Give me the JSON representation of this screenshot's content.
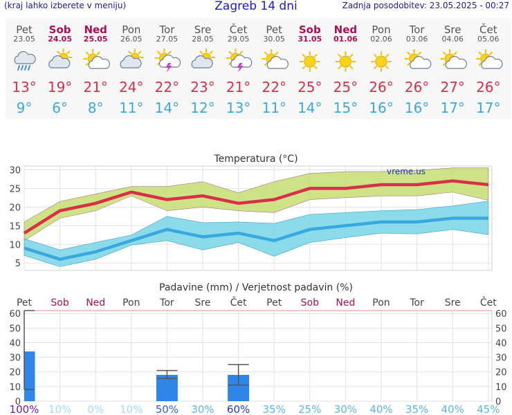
{
  "header": {
    "menu_hint": "(kraj lahko izberete v meniju)",
    "title": "Zagreb 14 dni",
    "updated": "Zadnja posodobitev: 23.05.2025 - 00:27"
  },
  "colors": {
    "weekday": "#555555",
    "weekend": "#aa1155",
    "max_temp": "#d83048",
    "min_temp": "#3aa8e0",
    "max_band": "#c8e07a",
    "min_band": "#7fd8e8",
    "bars": "#2e86e8"
  },
  "days": [
    {
      "day": "Pet",
      "date": "23.05",
      "weekend": false,
      "icon": "cloud-heavy-rain-icon",
      "max": "13°",
      "min": "9°"
    },
    {
      "day": "Sob",
      "date": "24.05",
      "weekend": true,
      "icon": "partly-cloudy-icon",
      "max": "19°",
      "min": "6°"
    },
    {
      "day": "Ned",
      "date": "25.05",
      "weekend": true,
      "icon": "mostly-sunny-icon",
      "max": "21°",
      "min": "8°"
    },
    {
      "day": "Pon",
      "date": "26.05",
      "weekend": false,
      "icon": "partly-cloudy-icon",
      "max": "24°",
      "min": "11°"
    },
    {
      "day": "Tor",
      "date": "27.05",
      "weekend": false,
      "icon": "thunderstorm-sun-icon",
      "max": "22°",
      "min": "14°"
    },
    {
      "day": "Sre",
      "date": "28.05",
      "weekend": false,
      "icon": "partly-cloudy-icon",
      "max": "23°",
      "min": "12°"
    },
    {
      "day": "Čet",
      "date": "29.05",
      "weekend": false,
      "icon": "thunderstorm-sun-icon",
      "max": "21°",
      "min": "13°"
    },
    {
      "day": "Pet",
      "date": "30.05",
      "weekend": false,
      "icon": "mostly-sunny-icon",
      "max": "22°",
      "min": "11°"
    },
    {
      "day": "Sob",
      "date": "31.05",
      "weekend": true,
      "icon": "sunny-icon",
      "max": "25°",
      "min": "14°"
    },
    {
      "day": "Ned",
      "date": "01.06",
      "weekend": true,
      "icon": "sunny-icon",
      "max": "25°",
      "min": "15°"
    },
    {
      "day": "Pon",
      "date": "02.06",
      "weekend": false,
      "icon": "sunny-icon",
      "max": "26°",
      "min": "16°"
    },
    {
      "day": "Tor",
      "date": "03.06",
      "weekend": false,
      "icon": "mostly-sunny-icon",
      "max": "26°",
      "min": "16°"
    },
    {
      "day": "Sre",
      "date": "04.06",
      "weekend": false,
      "icon": "mostly-sunny-icon",
      "max": "27°",
      "min": "17°"
    },
    {
      "day": "Čet",
      "date": "05.06",
      "weekend": false,
      "icon": "mostly-sunny-icon",
      "max": "26°",
      "min": "17°"
    }
  ],
  "chart_data": [
    {
      "type": "line",
      "title": "Temperatura (°C)",
      "watermark": "vreme.us",
      "ylim": [
        3,
        31
      ],
      "yticks": [
        5,
        10,
        15,
        20,
        25,
        30
      ],
      "grid": true,
      "series": [
        {
          "values": [
            13,
            19,
            21,
            24,
            22,
            23,
            21,
            22,
            25,
            25,
            26,
            26,
            27,
            26
          ],
          "band_upper": [
            16,
            21.5,
            23.5,
            25.5,
            25.5,
            26.8,
            23.8,
            26.8,
            29,
            29.5,
            29.5,
            29.8,
            30.5,
            30.5
          ],
          "band_lower": [
            11,
            17,
            19,
            23,
            19,
            20,
            19,
            18.5,
            22,
            22.5,
            23,
            23,
            24,
            21.8
          ]
        },
        {
          "values": [
            9,
            6,
            8,
            11,
            14,
            12,
            13,
            11,
            14,
            15,
            16,
            16,
            17,
            17
          ],
          "band_upper": [
            11.5,
            8.5,
            10.5,
            12.5,
            17.5,
            15.8,
            16,
            15.6,
            18,
            18.5,
            19,
            19.3,
            20.3,
            21.6
          ],
          "band_lower": [
            7,
            4,
            6,
            9.8,
            11,
            8.5,
            10.5,
            6.8,
            10.5,
            11.8,
            13,
            12.8,
            14,
            12.6
          ]
        }
      ]
    },
    {
      "type": "bar",
      "title": "Padavine (mm) / Verjetnost padavin (%)",
      "ylim": [
        0,
        62
      ],
      "yticks": [
        0,
        10,
        20,
        30,
        40,
        50,
        60
      ],
      "grid": true,
      "categories": [
        "Pet",
        "Sob",
        "Ned",
        "Pon",
        "Tor",
        "Sre",
        "Čet",
        "Pet",
        "Sob",
        "Ned",
        "Pon",
        "Tor",
        "Sre",
        "Čet"
      ],
      "values": [
        34,
        0,
        0,
        0,
        18,
        0,
        18,
        0,
        0,
        0,
        0,
        0,
        0,
        0
      ],
      "error_high": [
        62,
        null,
        null,
        null,
        21,
        null,
        25,
        null,
        null,
        null,
        null,
        null,
        null,
        null
      ],
      "error_low": [
        8,
        null,
        null,
        null,
        15.5,
        null,
        11,
        null,
        null,
        null,
        null,
        null,
        null,
        null
      ],
      "probability": [
        "100%",
        "10%",
        "0%",
        "10%",
        "50%",
        "30%",
        "60%",
        "35%",
        "25%",
        "30%",
        "40%",
        "35%",
        "40%",
        "45%"
      ],
      "probability_colors": [
        "#6a1aaa",
        "#9fdcf4",
        "#9fdcf4",
        "#9fdcf4",
        "#2e60d8",
        "#59b6ec",
        "#2038c8",
        "#59b6ec",
        "#59b6ec",
        "#59b6ec",
        "#59b6ec",
        "#59b6ec",
        "#59b6ec",
        "#59b6ec"
      ]
    }
  ]
}
